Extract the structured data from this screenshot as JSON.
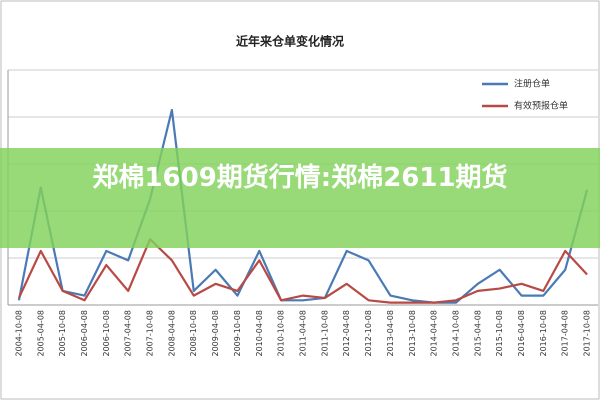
{
  "chart_data": {
    "type": "line",
    "title": "近年来仓单变化情况",
    "categories": [
      "2004-10-08",
      "2005-04-08",
      "2005-10-08",
      "2006-04-08",
      "2006-10-08",
      "2007-04-08",
      "2007-10-08",
      "2008-04-08",
      "2008-10-08",
      "2009-04-08",
      "2009-10-08",
      "2010-04-08",
      "2010-10-08",
      "2011-04-08",
      "2011-10-08",
      "2012-04-08",
      "2012-10-08",
      "2013-04-08",
      "2013-10-08",
      "2014-04-08",
      "2014-10-08",
      "2015-04-08",
      "2015-10-08",
      "2016-04-08",
      "2016-10-08",
      "2017-04-08",
      "2017-10-08"
    ],
    "series": [
      {
        "name": "注册仓单",
        "color": "#4a7ab5",
        "values": [
          2,
          50,
          6,
          4,
          23,
          19,
          45,
          83,
          6,
          15,
          4,
          23,
          2,
          2,
          3,
          23,
          19,
          4,
          2,
          1,
          1,
          9,
          15,
          4,
          4,
          15,
          49
        ]
      },
      {
        "name": "有效预报仓单",
        "color": "#b84a45",
        "values": [
          3,
          23,
          6,
          2,
          17,
          6,
          28,
          19,
          4,
          9,
          6,
          19,
          2,
          4,
          3,
          9,
          2,
          1,
          1,
          1,
          2,
          6,
          7,
          9,
          6,
          23,
          13
        ]
      }
    ],
    "ylim": [
      0,
      100
    ],
    "legend": "upper-right"
  },
  "overlay_title": "郑棉1609期货行情:郑棉2611期货"
}
